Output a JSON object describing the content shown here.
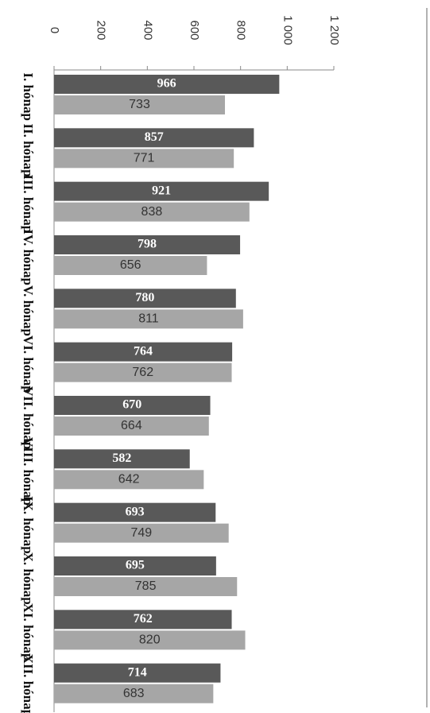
{
  "chart_data": {
    "type": "bar",
    "orientation": "horizontal",
    "categories": [
      "I. hónap",
      "II. hónap",
      "III. hónap",
      "IV. hónap",
      "V. hónap",
      "VI. hónap",
      "VII. hónap",
      "VIII. hónap",
      "IX. hónap",
      "X. hónap",
      "XI. hónap",
      "XII. hónap"
    ],
    "series": [
      {
        "color": "#595959",
        "values": [
          966,
          857,
          921,
          798,
          780,
          764,
          670,
          582,
          693,
          695,
          762,
          714
        ]
      },
      {
        "color": "#a6a6a6",
        "values": [
          733,
          771,
          838,
          656,
          811,
          762,
          664,
          642,
          749,
          785,
          820,
          683
        ]
      }
    ],
    "xlim": [
      0,
      1200
    ],
    "xticks": [
      0,
      200,
      400,
      600,
      800,
      {
        "value": 1000,
        "label": "1 000"
      },
      {
        "value": 1200,
        "label": "1 200"
      }
    ]
  }
}
